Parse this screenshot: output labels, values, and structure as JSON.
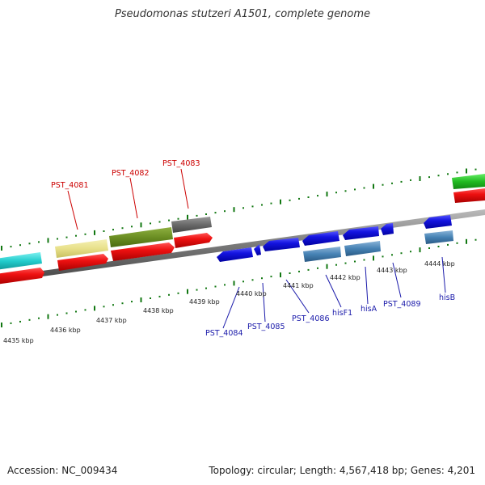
{
  "title": "Pseudomonas stutzeri A1501, complete genome",
  "footer": {
    "accession": "Accession: NC_009434",
    "summary": "Topology: circular; Length: 4,567,418 bp; Genes: 4,201"
  },
  "scale_labels": [
    "4435 kbp",
    "4436 kbp",
    "4437 kbp",
    "4438 kbp",
    "4439 kbp",
    "4440 kbp",
    "4441 kbp",
    "4442 kbp",
    "4443 kbp",
    "4444 kbp"
  ],
  "gene_labels_top": [
    "PST_4081",
    "PST_4082",
    "PST_4083"
  ],
  "gene_labels_bottom": [
    "PST_4084",
    "PST_4085",
    "PST_4086",
    "hisF1",
    "hisA",
    "PST_4089",
    "hisB"
  ],
  "colors": {
    "top_label": "#cc0000",
    "bottom_label": "#1a1aaa",
    "tick": "#117711",
    "cds_red": "#ee1111",
    "cds_blue": "#1414e0",
    "rna_steel": "#4682b4"
  }
}
